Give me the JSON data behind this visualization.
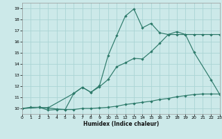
{
  "xlabel": "Humidex (Indice chaleur)",
  "bg_color": "#cce9e9",
  "grid_color": "#aad4d4",
  "line_color": "#2d7a6a",
  "xlim": [
    0,
    23
  ],
  "ylim": [
    9.5,
    19.5
  ],
  "xticks": [
    0,
    1,
    2,
    3,
    4,
    5,
    6,
    7,
    8,
    9,
    10,
    11,
    12,
    13,
    14,
    15,
    16,
    17,
    18,
    19,
    20,
    21,
    22,
    23
  ],
  "yticks": [
    10,
    11,
    12,
    13,
    14,
    15,
    16,
    17,
    18,
    19
  ],
  "line1_x": [
    0,
    1,
    2,
    3,
    4,
    5,
    6,
    7,
    8,
    9,
    10,
    11,
    12,
    13,
    14,
    15,
    16,
    17,
    18,
    19,
    20,
    21,
    22,
    23
  ],
  "line1_y": [
    10.0,
    10.1,
    10.1,
    9.85,
    9.9,
    9.9,
    9.9,
    10.0,
    10.0,
    10.05,
    10.1,
    10.2,
    10.35,
    10.45,
    10.55,
    10.65,
    10.8,
    10.9,
    11.05,
    11.15,
    11.25,
    11.3,
    11.3,
    11.3
  ],
  "line2_x": [
    0,
    2,
    3,
    4,
    5,
    6,
    7,
    8,
    9,
    10,
    11,
    12,
    13,
    14,
    15,
    16,
    17,
    18,
    19,
    20,
    22,
    23
  ],
  "line2_y": [
    10.0,
    10.1,
    10.05,
    9.95,
    9.9,
    11.35,
    11.9,
    11.45,
    11.95,
    12.6,
    13.75,
    14.1,
    14.5,
    14.45,
    15.1,
    15.85,
    16.65,
    16.9,
    16.65,
    15.05,
    12.55,
    11.25
  ],
  "line3_x": [
    0,
    2,
    3,
    6,
    7,
    8,
    9,
    10,
    11,
    12,
    13,
    14,
    15,
    16,
    17,
    18,
    19,
    20,
    21,
    22,
    23
  ],
  "line3_y": [
    10.0,
    10.1,
    10.05,
    11.35,
    11.9,
    11.45,
    12.05,
    14.75,
    16.55,
    18.3,
    18.95,
    17.25,
    17.65,
    16.8,
    16.65,
    16.65,
    16.65,
    16.65,
    16.65,
    16.65,
    16.65
  ]
}
